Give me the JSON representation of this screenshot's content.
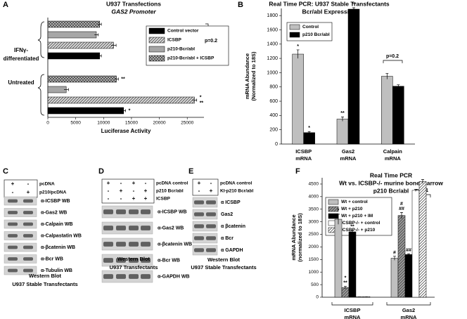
{
  "chart_data": [
    {
      "type": "bar",
      "orientation": "horizontal",
      "panel_label": "A",
      "title": "U937 Transfections",
      "subtitle": [
        "GAS2 Promoter"
      ],
      "categories": [
        [
          "IFNγ-",
          "differentiated"
        ],
        [
          "Untreated"
        ]
      ],
      "xlabel": "Luciferase Activity",
      "xlim": [
        0,
        28000
      ],
      "xticks": [
        0,
        5000,
        10000,
        15000,
        20000,
        25000
      ],
      "series": [
        {
          "name": "Control vector",
          "color": "#000000",
          "values": [
            9300,
            13600
          ],
          "errors": [
            300,
            350
          ],
          "notes": [
            null,
            "*"
          ]
        },
        {
          "name": "ICSBP",
          "color": "#d9d9d9",
          "hatch": "diagonal",
          "values": [
            11800,
            26300
          ],
          "errors": [
            450,
            400
          ],
          "notes": [
            null,
            [
              "*",
              "**"
            ]
          ]
        },
        {
          "name": "p210-Bcr/abl",
          "color": "#a6a6a6",
          "values": [
            8700,
            3300
          ],
          "errors": [
            350,
            400
          ],
          "notes": [
            null,
            null
          ]
        },
        {
          "name": "p210-Bcr/abl + ICSBP",
          "color": "#bfbfbf",
          "hatch": "cross",
          "values": [
            9300,
            12300
          ],
          "errors": [
            300,
            350
          ],
          "notes": [
            null,
            "**"
          ]
        }
      ],
      "annotations": [
        "p=0.2"
      ]
    },
    {
      "type": "bar",
      "orientation": "vertical",
      "panel_label": "B",
      "title": "Real Time PCR: U937 Stable Transfectants",
      "subtitle": [
        "Bcr/abl Expression"
      ],
      "categories": [
        [
          "ICSBP",
          "mRNA"
        ],
        [
          "Gas2",
          "mRNA"
        ],
        [
          "Calpain",
          "mRNA"
        ]
      ],
      "ylabel": [
        "mRNA Abundance",
        "(Normalized to 18S)"
      ],
      "ylim": [
        0,
        1900
      ],
      "yticks": [
        0,
        200,
        400,
        600,
        800,
        1000,
        1200,
        1400,
        1600,
        1800
      ],
      "series": [
        {
          "name": "Control",
          "color": "#bfbfbf",
          "values": [
            1260,
            350,
            950
          ],
          "errors": [
            60,
            30,
            40
          ],
          "notes": [
            "*",
            "**",
            null
          ]
        },
        {
          "name": "p210 Bcr/abl",
          "color": "#000000",
          "values": [
            160,
            1890,
            810
          ],
          "errors": [
            15,
            20,
            20
          ],
          "notes": [
            "*",
            "**",
            null
          ]
        }
      ],
      "annotations": [
        "p=0.2"
      ]
    },
    {
      "type": "bar",
      "orientation": "vertical",
      "panel_label": "F",
      "title": "Real Time PCR",
      "subtitle": [
        "Wt vs. ICSBP-/- murine bone marrow",
        "p210 Bcr/abl"
      ],
      "categories": [
        [
          "ICSBP",
          "mRNA"
        ],
        [
          "Gas2",
          "mRNA"
        ]
      ],
      "ylabel": [
        "mRNA Abundance",
        "(normalized to 18S)"
      ],
      "ylim": [
        0,
        4750
      ],
      "yticks": [
        0,
        500,
        1000,
        1500,
        2000,
        2500,
        3000,
        3500,
        4000,
        4500
      ],
      "series": [
        {
          "name": "Wt + control",
          "color": "#bfbfbf",
          "values": [
            3100,
            1550
          ],
          "errors": [
            200,
            80
          ],
          "notes": [
            "*",
            "#"
          ]
        },
        {
          "name": "Wt + p210",
          "color": "#9a9a9a",
          "hatch": "diagonal",
          "values": [
            380,
            3250
          ],
          "errors": [
            50,
            120
          ],
          "notes": [
            [
              "*",
              "**"
            ],
            [
              "#",
              "##"
            ]
          ]
        },
        {
          "name": "Wt + p210 + IM",
          "color": "#000000",
          "values": [
            2600,
            1700
          ],
          "errors": [
            60,
            30
          ],
          "notes": [
            "**",
            "##"
          ]
        },
        {
          "name": "ICSBP-/- + control",
          "color": "#ffffff",
          "values": [
            20,
            4250
          ],
          "errors": [
            0,
            40
          ],
          "notes": [
            null,
            null
          ]
        },
        {
          "name": "ICSBP-/-  + p210",
          "color": "#ffffff",
          "hatch": "diagonal",
          "values": [
            20,
            4600
          ],
          "errors": [
            0,
            80
          ],
          "notes": [
            null,
            null
          ]
        }
      ],
      "annotations": [
        "p=0.1"
      ]
    }
  ],
  "blots": [
    {
      "panel_label": "C",
      "conditions": [
        {
          "label": "pcDNA",
          "signs": [
            "+",
            "-"
          ]
        },
        {
          "label": "p210/pcDNA",
          "signs": [
            "-",
            "+"
          ]
        }
      ],
      "bands": [
        "α-ICSBP WB",
        "α-Gas2 WB",
        "α-Calpain WB",
        "α-Calpastatin WB",
        "α-βcatenin WB",
        "α-Bcr WB",
        "α-Tubulin WB"
      ],
      "caption": [
        "Western Blot",
        "U937 Stable Transfectants"
      ]
    },
    {
      "panel_label": "D",
      "conditions": [
        {
          "label": "pcDNA control",
          "signs": [
            "+",
            "-",
            "+",
            "-"
          ]
        },
        {
          "label": "p210 Bcr/abl",
          "signs": [
            "-",
            "+",
            "-",
            "+"
          ]
        },
        {
          "label": "ICSBP",
          "signs": [
            "-",
            "-",
            "+",
            "+"
          ]
        }
      ],
      "bands": [
        "α-ICSBP WB",
        "α-Gas2 WB",
        "α-βcatenin WB",
        "α-Bcr WB",
        "α-GAPDH WB"
      ],
      "caption": [
        "Western Blot",
        "U937 Transfectants"
      ]
    },
    {
      "panel_label": "E",
      "conditions": [
        {
          "label": "pcDNA control",
          "signs": [
            "+",
            "-"
          ]
        },
        {
          "label": "KI-p210 Bcr/abl",
          "signs": [
            "-",
            "+"
          ]
        }
      ],
      "bands": [
        "α ICSBP",
        "Gas2",
        "α βcatenin",
        "α Bcr",
        "α GAPDH"
      ],
      "caption": [
        "Western Blot",
        "U937 Stable Transfectants"
      ]
    }
  ]
}
